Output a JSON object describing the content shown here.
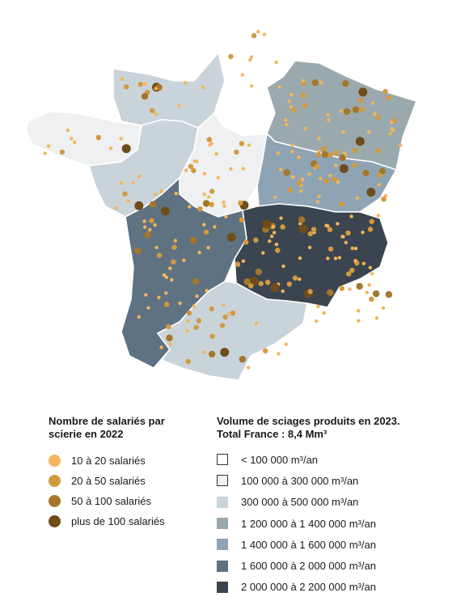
{
  "colors": {
    "white": "#ffffff",
    "very_light": "#eef0f1",
    "light": "#c9d3da",
    "grey_green": "#9aa9ad",
    "mid_blue": "#8ea4b4",
    "dark_blue": "#5f7282",
    "darkest": "#3b4550"
  },
  "legend_salaries": {
    "title_line1": "Nombre de salariés par",
    "title_line2": "scierie en 2022",
    "items": [
      {
        "label": "10 à 20 salariés",
        "color": "#f4b55a"
      },
      {
        "label": "20 à 50 salariés",
        "color": "#d29a3e"
      },
      {
        "label": "50 à 100 salariés",
        "color": "#a3772c"
      },
      {
        "label": "plus de 100 salariés",
        "color": "#6f4c1c"
      }
    ]
  },
  "legend_volume": {
    "title_line1": "Volume de sciages produits en 2023.",
    "title_line2": "Total France : 8,4 Mm³",
    "items": [
      {
        "label": "< 100 000 m³/an",
        "color": "#ffffff"
      },
      {
        "label": "100 000 à 300 000 m³/an",
        "color": "#eef0f1"
      },
      {
        "label": "300 000 à 500 000 m³/an",
        "color": "#c9d3da"
      },
      {
        "label": "1 200 000 à 1 400 000 m³/an",
        "color": "#9aa9ad"
      },
      {
        "label": "1 400 000 à 1 600 000 m³/an",
        "color": "#8ea4b4"
      },
      {
        "label": "1 600 000 à 2 000 000 m³/an",
        "color": "#5f7282"
      },
      {
        "label": "2 000 000 à 2 200 000 m³/an",
        "color": "#3b4550"
      }
    ]
  }
}
